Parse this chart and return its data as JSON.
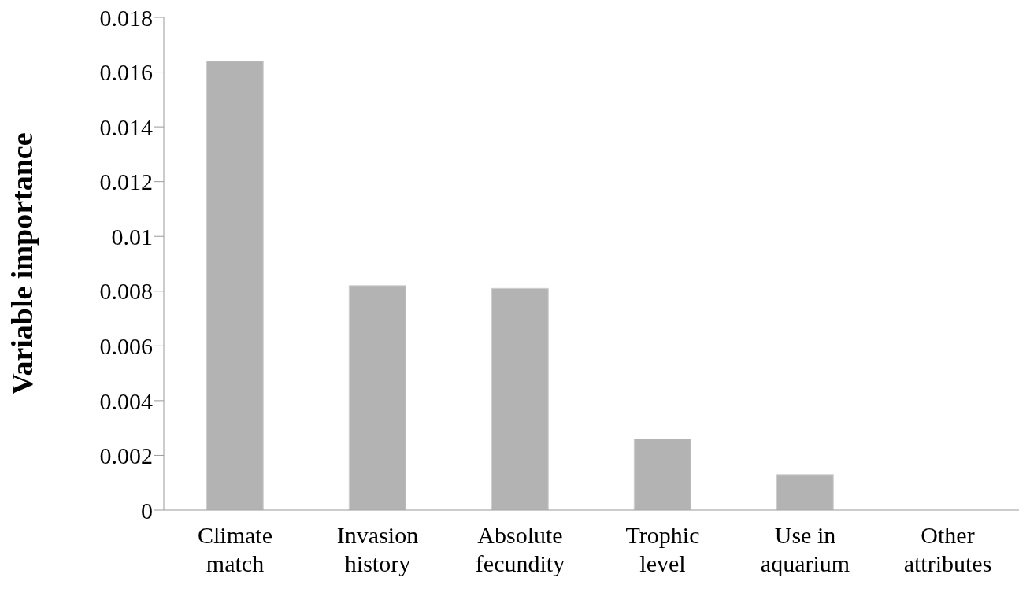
{
  "chart_data": {
    "type": "bar",
    "ylabel": "Variable importance",
    "categories": [
      "Climate match",
      "Invasion history",
      "Absolute fecundity",
      "Trophic level",
      "Use in aquarium",
      "Other attributes"
    ],
    "values": [
      0.0164,
      0.0082,
      0.0081,
      0.0026,
      0.0013,
      0
    ],
    "color": "#b3b3b3",
    "ylim": [
      0,
      0.018
    ],
    "yticks": [
      0,
      0.002,
      0.004,
      0.006,
      0.008,
      0.01,
      0.012,
      0.014,
      0.016,
      0.018
    ],
    "grid": false,
    "legend": false
  }
}
